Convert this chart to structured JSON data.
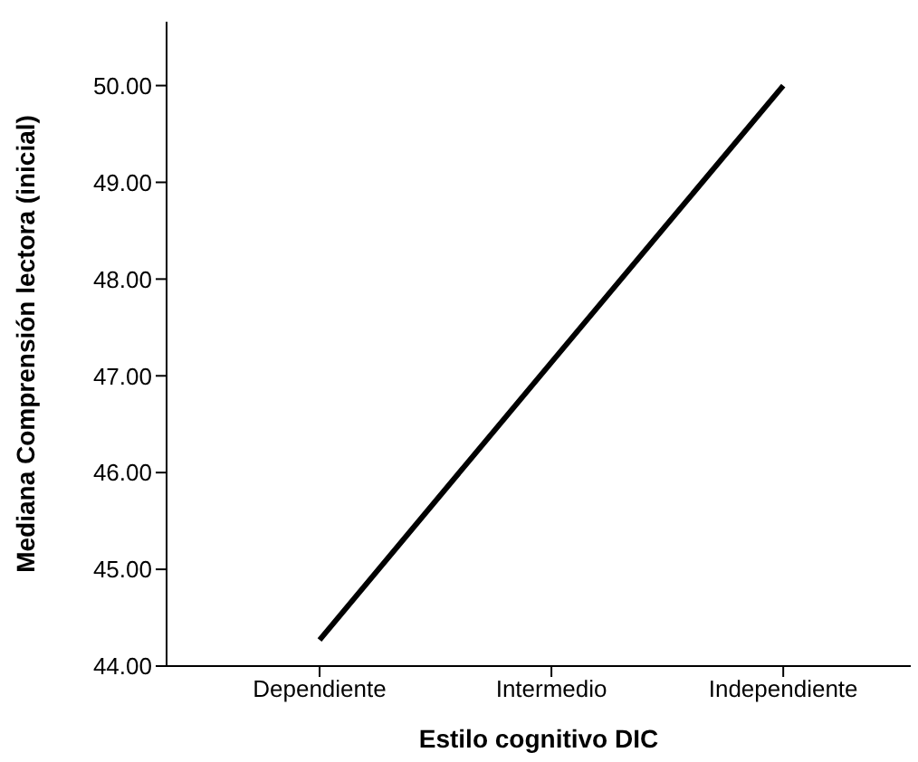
{
  "chart_data": {
    "type": "line",
    "xlabel": "Estilo cognitivo DIC",
    "ylabel": "Mediana Comprensión lectora (inicial)",
    "categories": [
      "Dependiente",
      "Intermedio",
      "Independiente"
    ],
    "series": [
      {
        "color": "#000000",
        "values": [
          44.27,
          47.14,
          50.0
        ]
      }
    ],
    "ylim": [
      44,
      50.66
    ],
    "yticks": [
      {
        "value": 44,
        "label": "44.00"
      },
      {
        "value": 45,
        "label": "45.00"
      },
      {
        "value": 46,
        "label": "46.00"
      },
      {
        "value": 47,
        "label": "47.00"
      },
      {
        "value": 48,
        "label": "48.00"
      },
      {
        "value": 49,
        "label": "49.00"
      },
      {
        "value": 50,
        "label": "50.00"
      }
    ],
    "grid": false,
    "legend": false,
    "marker": "none",
    "line_style": "solid"
  }
}
